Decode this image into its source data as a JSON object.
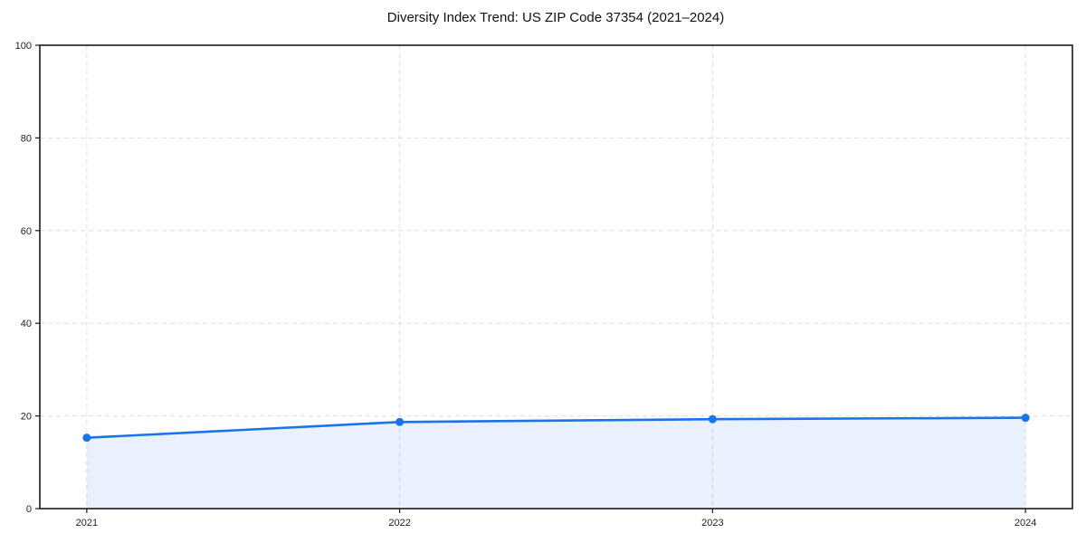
{
  "title": "Diversity Index Trend: US ZIP Code 37354 (2021–2024)",
  "chart_data": {
    "type": "line",
    "title": "Diversity Index Trend: US ZIP Code 37354 (2021–2024)",
    "x": [
      2021,
      2022,
      2023,
      2024
    ],
    "categories": [
      "2021",
      "2022",
      "2023",
      "2024"
    ],
    "series": [
      {
        "name": "Diversity Index",
        "values": [
          15.3,
          18.7,
          19.3,
          19.6
        ]
      }
    ],
    "xlabel": "",
    "ylabel": "",
    "ylim": [
      0,
      100
    ],
    "yticks": [
      0,
      20,
      40,
      60,
      80,
      100
    ],
    "x_margin_fraction": 0.05,
    "grid": true,
    "grid_style": "dashed",
    "legend_position": "none",
    "marker": "circle",
    "line_color": "#1a73e8",
    "marker_color": "#1a73e8",
    "fill_color": "rgba(26,115,232,0.10)",
    "grid_color": "#dedede",
    "spine_color": "#1a1a1a",
    "background_color": "#ffffff"
  }
}
